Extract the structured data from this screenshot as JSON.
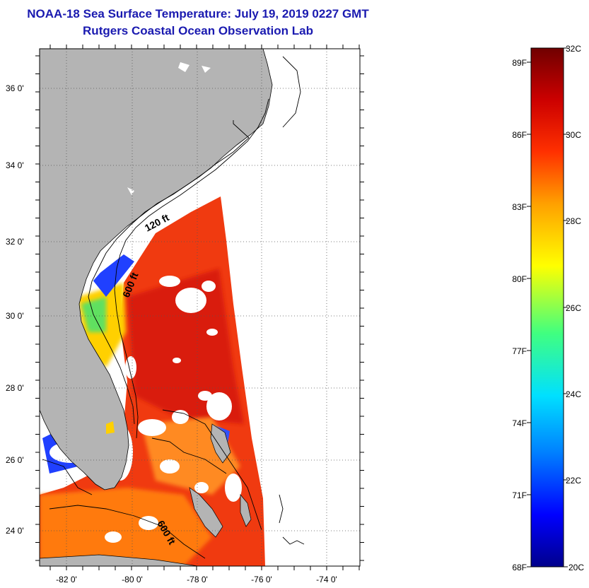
{
  "header": {
    "title": "NOAA-18 Sea Surface Temperature:  July 19, 2019 0227 GMT",
    "subtitle": "Rutgers Coastal Ocean Observation Lab"
  },
  "map": {
    "lat_ticks": [
      "36 0'",
      "34 0'",
      "32 0'",
      "30 0'",
      "28 0'",
      "26 0'",
      "24 0'"
    ],
    "lon_ticks": [
      "-82 0'",
      "-80 0'",
      "-78 0'",
      "-76 0'",
      "-74 0'"
    ],
    "isobath_labels": [
      "120 ft",
      "600 ft",
      "600 ft"
    ],
    "colors": {
      "land": "#b4b4b4",
      "no_data": "#ffffff",
      "grid": "#555555"
    }
  },
  "colorbar": {
    "fahrenheit_labels": [
      "89F",
      "86F",
      "83F",
      "80F",
      "77F",
      "74F",
      "71F",
      "68F"
    ],
    "celsius_labels": [
      "32C",
      "30C",
      "28C",
      "26C",
      "24C",
      "22C",
      "20C"
    ],
    "range_c": [
      20,
      32
    ],
    "colors": [
      "#00008b",
      "#0000ff",
      "#0080ff",
      "#00e0ff",
      "#40ff80",
      "#ffff00",
      "#ffa000",
      "#ff3000",
      "#cc0000",
      "#700000"
    ]
  }
}
